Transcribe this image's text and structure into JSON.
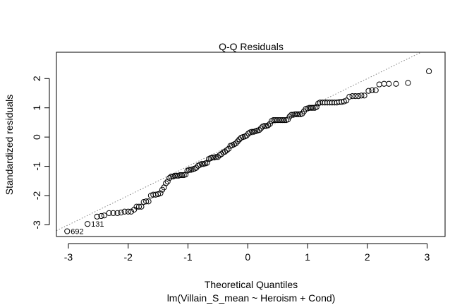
{
  "chart_data": {
    "type": "scatter",
    "title": "Q-Q Residuals",
    "xlabel": "Theoretical Quantiles",
    "sublabel": "lm(Villain_S_mean ~ Heroism + Cond)",
    "ylabel": "Standardized residuals",
    "xlim": [
      -3.2,
      3.3
    ],
    "ylim": [
      -3.4,
      2.9
    ],
    "x_ticks": [
      -3,
      -2,
      -1,
      0,
      1,
      2,
      3
    ],
    "y_ticks": [
      -3,
      -2,
      -1,
      0,
      1,
      2
    ],
    "x_tick_labels": [
      "-3",
      "-2",
      "-1",
      "0",
      "1",
      "2",
      "3"
    ],
    "y_tick_labels": [
      "-3",
      "-2",
      "-1",
      "0",
      "1",
      "2"
    ],
    "grid": false,
    "reference_line": {
      "slope": 1.0,
      "intercept": 0.0,
      "style": "dotted",
      "color": "#808080"
    },
    "annotations": [
      {
        "label": "692",
        "x": -3.02,
        "y": -3.22
      },
      {
        "label": "131",
        "x": -2.68,
        "y": -2.97
      }
    ],
    "points": [
      [
        -3.02,
        -3.22
      ],
      [
        -2.68,
        -2.97
      ],
      [
        -2.52,
        -2.72
      ],
      [
        -2.45,
        -2.7
      ],
      [
        -2.4,
        -2.68
      ],
      [
        -2.32,
        -2.6
      ],
      [
        -2.25,
        -2.6
      ],
      [
        -2.18,
        -2.6
      ],
      [
        -2.12,
        -2.58
      ],
      [
        -2.06,
        -2.55
      ],
      [
        -2.0,
        -2.55
      ],
      [
        -1.95,
        -2.55
      ],
      [
        -1.9,
        -2.48
      ],
      [
        -1.86,
        -2.38
      ],
      [
        -1.82,
        -2.38
      ],
      [
        -1.78,
        -2.38
      ],
      [
        -1.74,
        -2.22
      ],
      [
        -1.7,
        -2.2
      ],
      [
        -1.66,
        -2.2
      ],
      [
        -1.62,
        -2.0
      ],
      [
        -1.58,
        -1.97
      ],
      [
        -1.54,
        -1.97
      ],
      [
        -1.5,
        -1.95
      ],
      [
        -1.46,
        -1.92
      ],
      [
        -1.43,
        -1.8
      ],
      [
        -1.4,
        -1.72
      ],
      [
        -1.37,
        -1.58
      ],
      [
        -1.34,
        -1.52
      ],
      [
        -1.31,
        -1.4
      ],
      [
        -1.28,
        -1.35
      ],
      [
        -1.25,
        -1.35
      ],
      [
        -1.22,
        -1.32
      ],
      [
        -1.19,
        -1.32
      ],
      [
        -1.16,
        -1.32
      ],
      [
        -1.13,
        -1.3
      ],
      [
        -1.1,
        -1.3
      ],
      [
        -1.07,
        -1.3
      ],
      [
        -1.04,
        -1.28
      ],
      [
        -1.01,
        -1.15
      ],
      [
        -0.98,
        -1.12
      ],
      [
        -0.95,
        -1.12
      ],
      [
        -0.92,
        -1.1
      ],
      [
        -0.89,
        -1.08
      ],
      [
        -0.86,
        -1.05
      ],
      [
        -0.83,
        -0.98
      ],
      [
        -0.8,
        -0.95
      ],
      [
        -0.77,
        -0.92
      ],
      [
        -0.74,
        -0.92
      ],
      [
        -0.71,
        -0.9
      ],
      [
        -0.68,
        -0.88
      ],
      [
        -0.65,
        -0.75
      ],
      [
        -0.62,
        -0.72
      ],
      [
        -0.59,
        -0.7
      ],
      [
        -0.56,
        -0.7
      ],
      [
        -0.53,
        -0.68
      ],
      [
        -0.5,
        -0.68
      ],
      [
        -0.47,
        -0.62
      ],
      [
        -0.44,
        -0.58
      ],
      [
        -0.41,
        -0.52
      ],
      [
        -0.38,
        -0.5
      ],
      [
        -0.35,
        -0.45
      ],
      [
        -0.32,
        -0.4
      ],
      [
        -0.29,
        -0.3
      ],
      [
        -0.26,
        -0.28
      ],
      [
        -0.23,
        -0.25
      ],
      [
        -0.2,
        -0.22
      ],
      [
        -0.17,
        -0.15
      ],
      [
        -0.14,
        -0.08
      ],
      [
        -0.11,
        -0.02
      ],
      [
        -0.08,
        0.0
      ],
      [
        -0.05,
        0.02
      ],
      [
        -0.02,
        0.05
      ],
      [
        0.01,
        0.12
      ],
      [
        0.04,
        0.16
      ],
      [
        0.07,
        0.18
      ],
      [
        0.1,
        0.18
      ],
      [
        0.13,
        0.2
      ],
      [
        0.16,
        0.22
      ],
      [
        0.19,
        0.24
      ],
      [
        0.22,
        0.3
      ],
      [
        0.25,
        0.36
      ],
      [
        0.28,
        0.38
      ],
      [
        0.31,
        0.38
      ],
      [
        0.34,
        0.4
      ],
      [
        0.37,
        0.45
      ],
      [
        0.4,
        0.55
      ],
      [
        0.43,
        0.58
      ],
      [
        0.46,
        0.58
      ],
      [
        0.49,
        0.58
      ],
      [
        0.52,
        0.58
      ],
      [
        0.55,
        0.58
      ],
      [
        0.58,
        0.58
      ],
      [
        0.61,
        0.58
      ],
      [
        0.64,
        0.58
      ],
      [
        0.67,
        0.6
      ],
      [
        0.7,
        0.7
      ],
      [
        0.73,
        0.76
      ],
      [
        0.76,
        0.76
      ],
      [
        0.79,
        0.78
      ],
      [
        0.82,
        0.78
      ],
      [
        0.85,
        0.78
      ],
      [
        0.88,
        0.78
      ],
      [
        0.91,
        0.8
      ],
      [
        0.94,
        0.88
      ],
      [
        0.97,
        0.96
      ],
      [
        1.0,
        0.98
      ],
      [
        1.03,
        1.0
      ],
      [
        1.06,
        1.0
      ],
      [
        1.09,
        1.0
      ],
      [
        1.12,
        1.0
      ],
      [
        1.15,
        1.03
      ],
      [
        1.18,
        1.15
      ],
      [
        1.21,
        1.18
      ],
      [
        1.25,
        1.18
      ],
      [
        1.29,
        1.18
      ],
      [
        1.33,
        1.18
      ],
      [
        1.37,
        1.18
      ],
      [
        1.41,
        1.18
      ],
      [
        1.45,
        1.18
      ],
      [
        1.49,
        1.18
      ],
      [
        1.53,
        1.2
      ],
      [
        1.57,
        1.2
      ],
      [
        1.61,
        1.22
      ],
      [
        1.65,
        1.25
      ],
      [
        1.7,
        1.38
      ],
      [
        1.75,
        1.4
      ],
      [
        1.8,
        1.4
      ],
      [
        1.85,
        1.4
      ],
      [
        1.9,
        1.42
      ],
      [
        1.95,
        1.42
      ],
      [
        2.02,
        1.58
      ],
      [
        2.08,
        1.6
      ],
      [
        2.14,
        1.6
      ],
      [
        2.2,
        1.8
      ],
      [
        2.28,
        1.82
      ],
      [
        2.36,
        1.82
      ],
      [
        2.48,
        1.82
      ],
      [
        2.68,
        1.85
      ],
      [
        3.03,
        2.25
      ]
    ]
  }
}
